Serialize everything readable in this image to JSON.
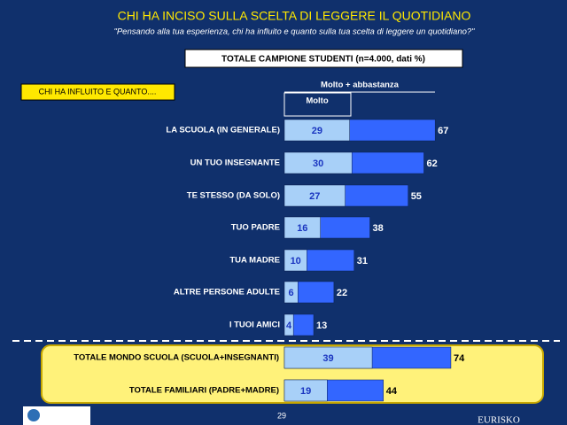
{
  "chart_data": {
    "type": "bar",
    "title": "CHI HA INCISO SULLA SCELTA DI LEGGERE IL QUOTIDIANO",
    "subtitle": "\"Pensando alla tua esperienza, chi ha influito e quanto sulla tua scelta di leggere un quotidiano?\"",
    "sample_note": "TOTALE CAMPIONE STUDENTI (n=4.000, dati %)",
    "question_label": "CHI HA INFLUITO E QUANTO....",
    "categories": [
      "LA SCUOLA (IN GENERALE)",
      "UN TUO INSEGNANTE",
      "TE STESSO (DA SOLO)",
      "TUO PADRE",
      "TUA MADRE",
      "ALTRE PERSONE ADULTE",
      "I TUOI AMICI",
      "TOTALE MONDO SCUOLA (SCUOLA+INSEGNANTI)",
      "TOTALE FAMILIARI (PADRE+MADRE)"
    ],
    "series": [
      {
        "name": "Molto + abbastanza",
        "color": "#3366ff",
        "values": [
          67,
          62,
          55,
          38,
          31,
          22,
          13,
          74,
          44
        ]
      },
      {
        "name": "Molto",
        "color": "#a8d0f8",
        "values": [
          29,
          30,
          27,
          16,
          10,
          6,
          4,
          39,
          19
        ]
      }
    ],
    "xlim": [
      0,
      100
    ]
  },
  "footer": {
    "page_number": "29",
    "brand": "EURISKO"
  }
}
